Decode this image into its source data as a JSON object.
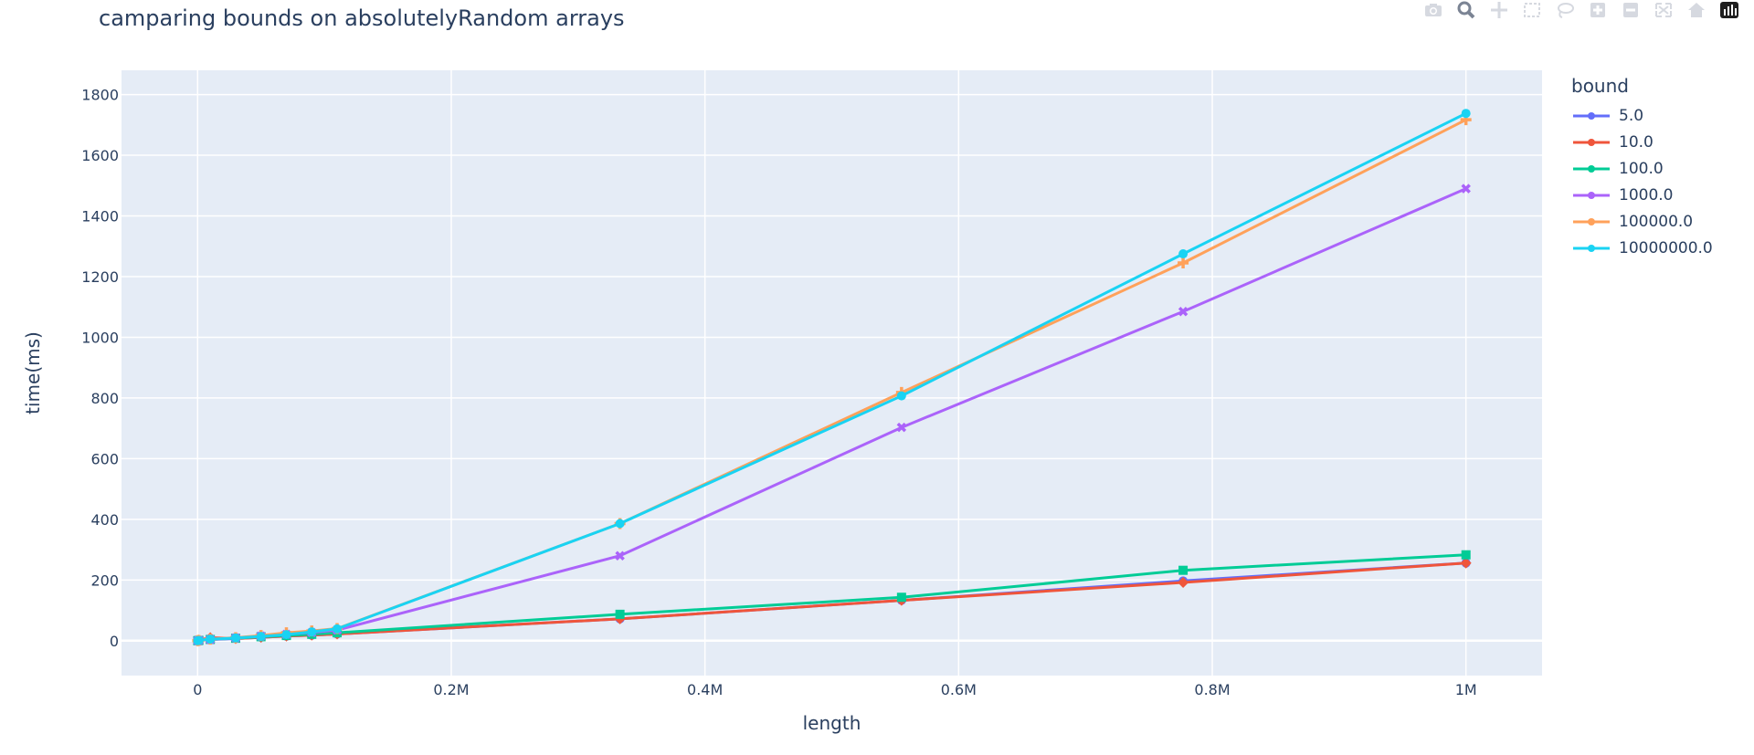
{
  "chart_data": {
    "type": "line",
    "title": "camparing bounds on absolutelyRandom arrays",
    "xlabel": "length",
    "ylabel": "time(ms)",
    "xlim": [
      -60000,
      1060000
    ],
    "ylim": [
      -115,
      1880
    ],
    "xticks": [
      0,
      200000,
      400000,
      600000,
      800000,
      1000000
    ],
    "xtick_labels": [
      "0",
      "0.2M",
      "0.4M",
      "0.6M",
      "0.8M",
      "1M"
    ],
    "yticks": [
      0,
      200,
      400,
      600,
      800,
      1000,
      1200,
      1400,
      1600,
      1800
    ],
    "ytick_labels": [
      "0",
      "200",
      "400",
      "600",
      "800",
      "1000",
      "1200",
      "1400",
      "1600",
      "1800"
    ],
    "grid": true,
    "legend_title": "bound",
    "legend_position": "right",
    "x": [
      100,
      1000,
      10000,
      30000,
      50000,
      70000,
      90000,
      110000,
      333000,
      555000,
      777000,
      1000000
    ],
    "series": [
      {
        "name": "5.0",
        "color": "#636efa",
        "marker": "circle",
        "values": [
          0,
          1,
          4,
          7,
          11,
          15,
          18,
          22,
          72,
          133,
          197,
          256
        ]
      },
      {
        "name": "10.0",
        "color": "#ef553b",
        "marker": "diamond",
        "values": [
          0,
          2,
          10,
          7,
          11,
          15,
          18,
          22,
          72,
          133,
          192,
          256
        ]
      },
      {
        "name": "100.0",
        "color": "#00cc96",
        "marker": "square",
        "values": [
          0,
          1,
          4,
          8,
          13,
          17,
          21,
          26,
          87,
          143,
          232,
          283
        ]
      },
      {
        "name": "1000.0",
        "color": "#ab63fa",
        "marker": "x",
        "values": [
          0,
          1,
          4,
          9,
          15,
          21,
          27,
          35,
          280,
          703,
          1085,
          1490
        ]
      },
      {
        "name": "100000.0",
        "color": "#ffa15a",
        "marker": "cross",
        "values": [
          0,
          1,
          5,
          10,
          17,
          26,
          32,
          40,
          386,
          818,
          1245,
          1717
        ]
      },
      {
        "name": "10000000.0",
        "color": "#19d3f3",
        "marker": "circle",
        "values": [
          0,
          1,
          5,
          9,
          14,
          20,
          29,
          39,
          386,
          807,
          1275,
          1738
        ]
      }
    ]
  },
  "modebar": {
    "icons": [
      "camera-icon",
      "zoom-icon",
      "pan-icon",
      "box-select-icon",
      "lasso-icon",
      "zoom-in-icon",
      "zoom-out-icon",
      "autoscale-icon",
      "reset-axes-icon",
      "plotly-logo-icon"
    ]
  },
  "plot_bg": "#e5ecf6",
  "grid_color": "#ffffff"
}
